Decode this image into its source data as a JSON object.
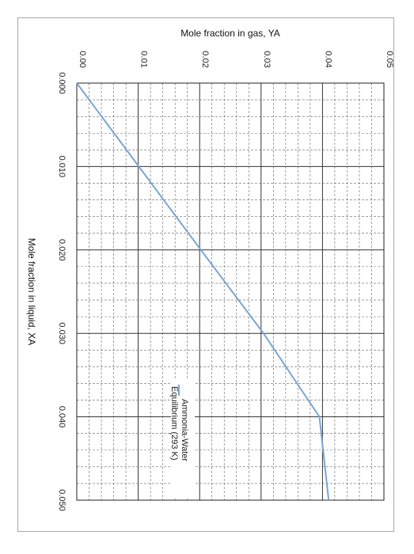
{
  "chart_data": {
    "type": "line",
    "orientation": "rotated-90-clockwise",
    "xlabel": "Mole fraction in liquid, XA",
    "ylabel": "Mole fraction in gas, YA",
    "xlim": [
      0.0,
      0.05
    ],
    "ylim": [
      0.0,
      0.05
    ],
    "x_ticks": [
      "0.000",
      "0.010",
      "0.020",
      "0.030",
      "0.040",
      "0.050"
    ],
    "y_ticks": [
      "0.00",
      "0.01",
      "0.02",
      "0.03",
      "0.04",
      "0.05"
    ],
    "grid": {
      "major": true,
      "minor": true,
      "minor_style": "dashed"
    },
    "legend_position": "inside-lower-middle",
    "series": [
      {
        "name": "Ammonia-Water Equilibrium (293 K)",
        "color": "#7aa6cf",
        "x": [
          0.0,
          0.01,
          0.02,
          0.03,
          0.04,
          0.05
        ],
        "y": [
          0.0,
          0.0101,
          0.0202,
          0.0304,
          0.0395,
          0.041
        ]
      }
    ]
  }
}
